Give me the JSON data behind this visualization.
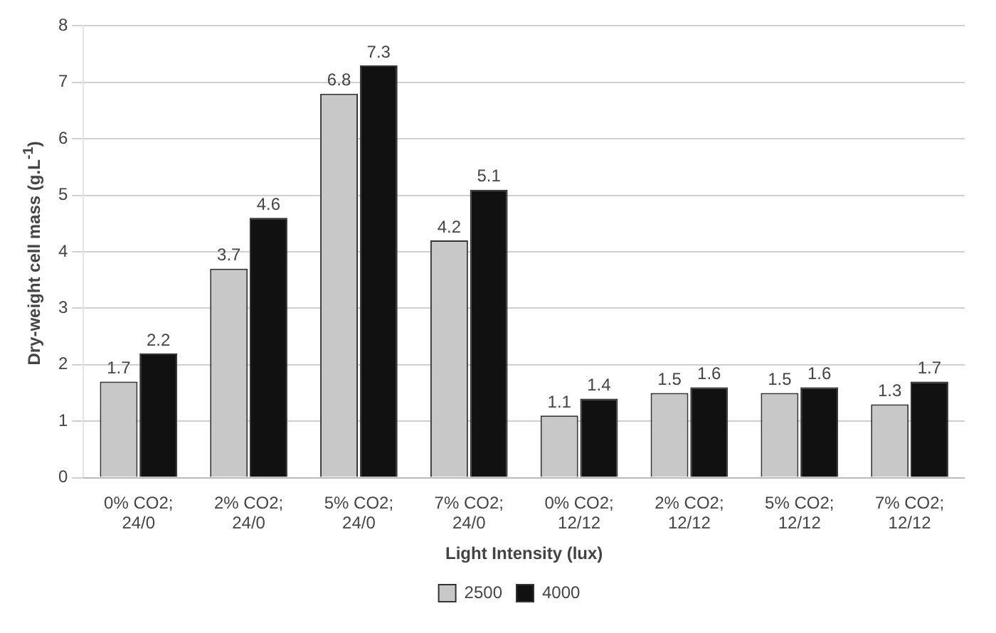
{
  "chart_data": {
    "type": "bar",
    "xlabel": "Light Intensity (lux)",
    "ylabel": "Dry-weight cell mass (g.L$^{-1}$)",
    "categories": [
      "0% CO2;\n24/0",
      "2% CO2;\n24/0",
      "5% CO2;\n24/0",
      "7% CO2;\n24/0",
      "0% CO2;\n12/12",
      "2% CO2;\n12/12",
      "5% CO2;\n12/12",
      "7% CO2;\n12/12"
    ],
    "series": [
      {
        "name": "2500",
        "color": "#c8c8c8",
        "values": [
          1.7,
          3.7,
          6.8,
          4.2,
          1.1,
          1.5,
          1.5,
          1.3
        ]
      },
      {
        "name": "4000",
        "color": "#111111",
        "values": [
          2.2,
          4.6,
          7.3,
          5.1,
          1.4,
          1.6,
          1.6,
          1.7
        ]
      }
    ],
    "ylim": [
      0,
      8
    ],
    "yticks": [
      0,
      1,
      2,
      3,
      4,
      5,
      6,
      7,
      8
    ],
    "grid": "y",
    "legend": "bottom",
    "data_labels": true
  }
}
